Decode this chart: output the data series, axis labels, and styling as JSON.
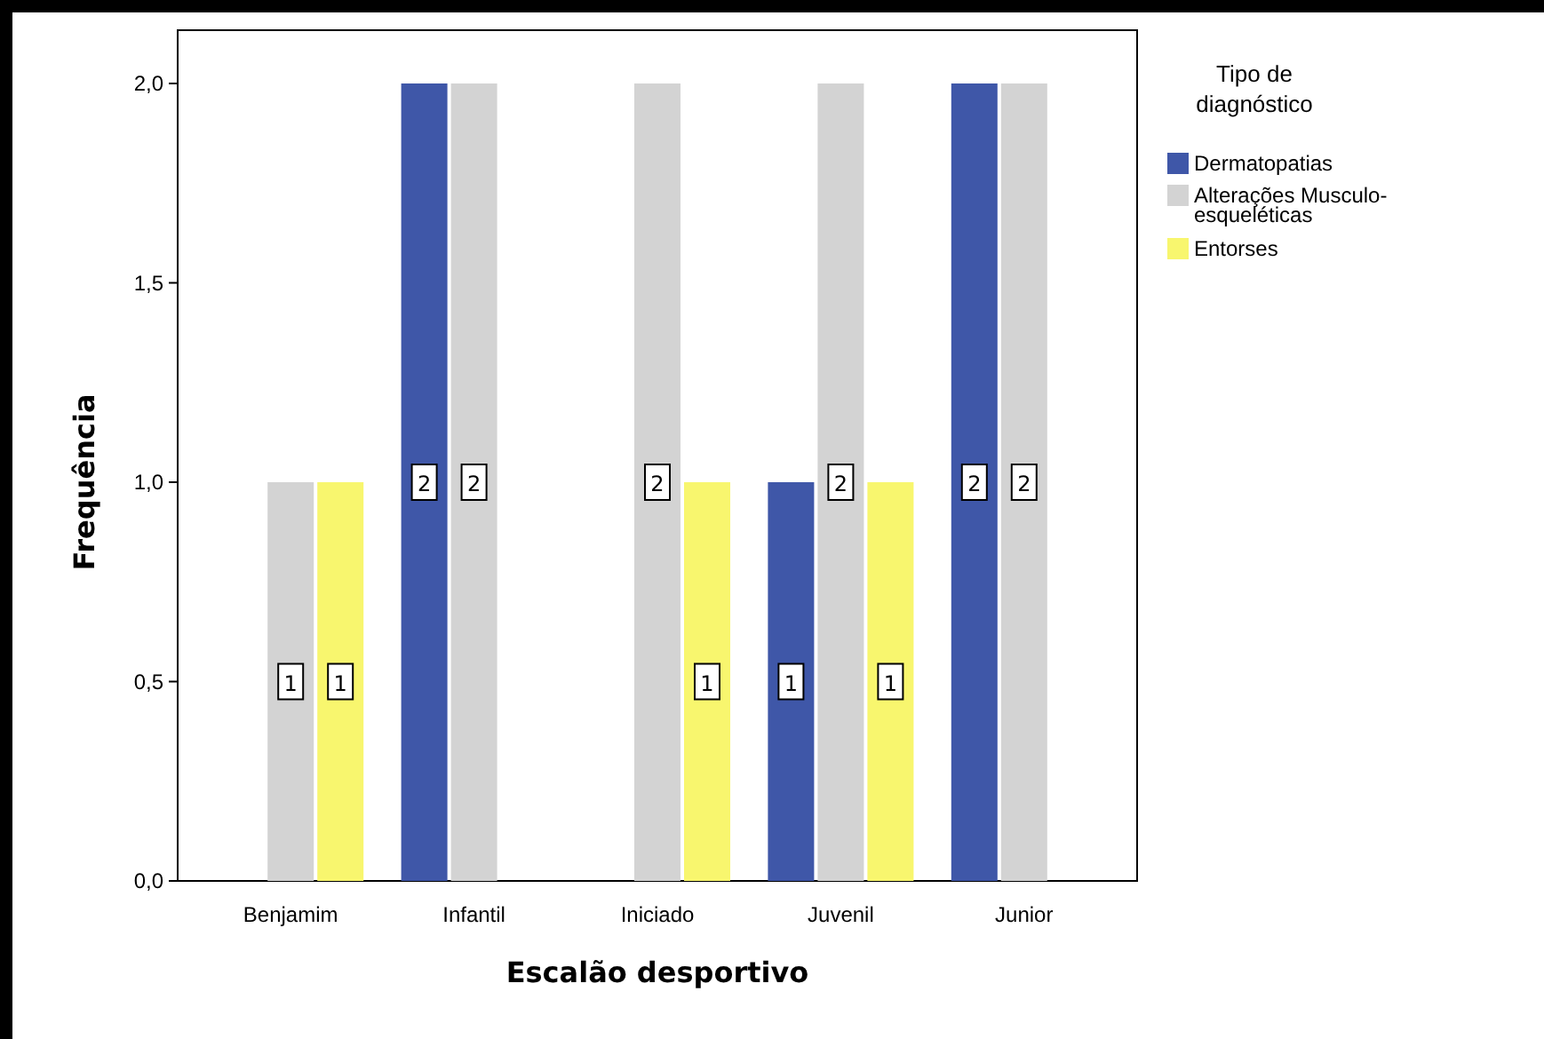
{
  "chart_data": {
    "type": "bar",
    "xlabel": "Escalão desportivo",
    "ylabel": "Frequência",
    "legend_title": "Tipo de diagnóstico",
    "categories": [
      "Benjamim",
      "Infantil",
      "Iniciado",
      "Juvenil",
      "Junior"
    ],
    "series": [
      {
        "name": "Dermatopatias",
        "color": "#3f57a8",
        "values": [
          null,
          2,
          null,
          1,
          2
        ]
      },
      {
        "name": "Alterações Musculo-esqueléticas",
        "color": "#d3d3d3",
        "values": [
          1,
          2,
          2,
          2,
          2
        ]
      },
      {
        "name": "Entorses",
        "color": "#f8f66e",
        "values": [
          1,
          null,
          1,
          1,
          null
        ]
      }
    ],
    "ylim": [
      0,
      2
    ],
    "yticks": [
      {
        "value": 0,
        "label": "0,0"
      },
      {
        "value": 0.5,
        "label": "0,5"
      },
      {
        "value": 1,
        "label": "1,0"
      },
      {
        "value": 1.5,
        "label": "1,5"
      },
      {
        "value": 2,
        "label": "2,0"
      }
    ],
    "data_labels": true,
    "legend": "right",
    "grid": false
  }
}
